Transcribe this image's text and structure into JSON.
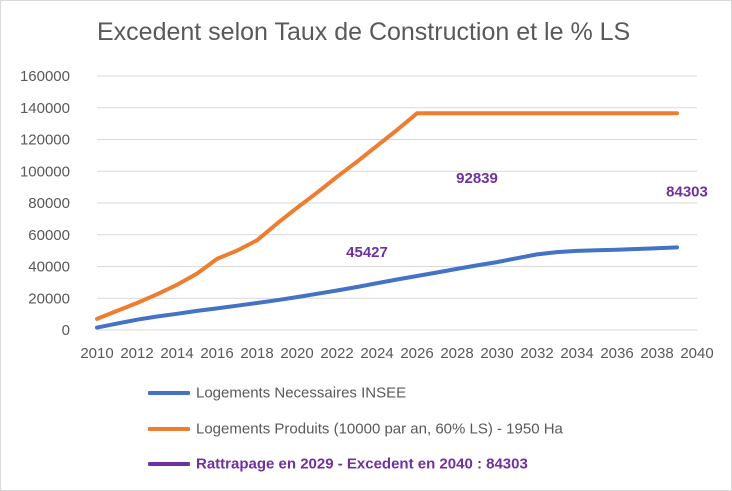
{
  "chart_data": {
    "type": "line",
    "title": "Excedent selon Taux de Construction et le % LS",
    "xlabel": "",
    "ylabel": "",
    "xlim": [
      2010,
      2040
    ],
    "ylim": [
      0,
      160000
    ],
    "x_ticks": [
      "2010",
      "2012",
      "2014",
      "2016",
      "2018",
      "2020",
      "2022",
      "2024",
      "2026",
      "2028",
      "2030",
      "2032",
      "2034",
      "2036",
      "2038",
      "2040"
    ],
    "y_ticks": [
      "0",
      "20000",
      "40000",
      "60000",
      "80000",
      "100000",
      "120000",
      "140000",
      "160000"
    ],
    "grid": "horizontal",
    "legend_position": "bottom",
    "series": [
      {
        "name": "Logements Necessaires INSEE",
        "color": "#4472c4",
        "x": [
          2010,
          2011,
          2012,
          2013,
          2014,
          2015,
          2016,
          2017,
          2018,
          2019,
          2020,
          2021,
          2022,
          2023,
          2024,
          2025,
          2026,
          2027,
          2028,
          2029,
          2030,
          2031,
          2032,
          2033,
          2034,
          2035,
          2036,
          2037,
          2038,
          2039
        ],
        "y": [
          1500,
          4000,
          6500,
          8500,
          10200,
          12000,
          13600,
          15300,
          17000,
          18800,
          20700,
          22800,
          24900,
          27100,
          29500,
          31800,
          34000,
          36200,
          38500,
          40700,
          42800,
          45200,
          47600,
          49100,
          49800,
          50200,
          50600,
          51000,
          51500,
          52000
        ]
      },
      {
        "name": "Logements Produits (10000 par an, 60% LS) - 1950 Ha",
        "color": "#ed7d31",
        "x": [
          2010,
          2011,
          2012,
          2013,
          2014,
          2015,
          2016,
          2017,
          2018,
          2019,
          2020,
          2021,
          2022,
          2023,
          2024,
          2025,
          2026,
          2027,
          2028,
          2029,
          2030,
          2031,
          2032,
          2033,
          2034,
          2035,
          2036,
          2037,
          2038,
          2039
        ],
        "y": [
          7000,
          12000,
          17000,
          22500,
          28500,
          35500,
          44800,
          50000,
          56500,
          67000,
          77000,
          86500,
          96500,
          106000,
          116000,
          126000,
          136500,
          136500,
          136500,
          136500,
          136500,
          136500,
          136500,
          136500,
          136500,
          136500,
          136500,
          136500,
          136500,
          136500
        ]
      },
      {
        "name": "Rattrapage en 2029 - Excedent en 2040 : 84303",
        "color": "#7030a0",
        "x": [],
        "y": []
      }
    ],
    "annotations": [
      {
        "text": "45427",
        "x": 2023.5,
        "y": 46000
      },
      {
        "text": "92839",
        "x": 2029,
        "y": 92500
      },
      {
        "text": "84303",
        "x": 2039.5,
        "y": 84000
      }
    ]
  }
}
